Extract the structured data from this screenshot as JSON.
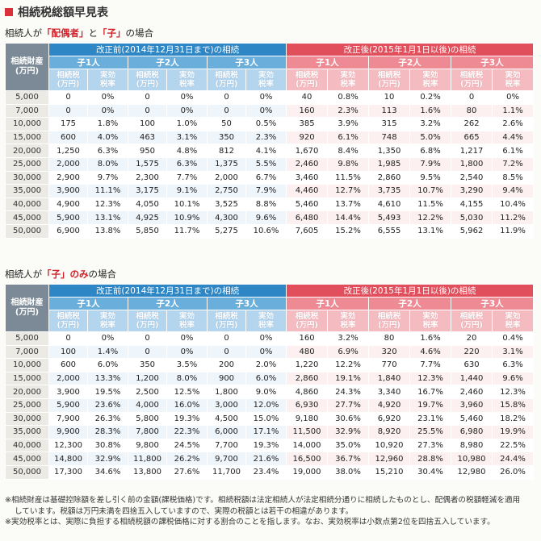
{
  "title": "相続税総額早見表",
  "headers": {
    "estate": "相続財産",
    "estate_unit": "(万円)",
    "before": "改正前(2014年12月31日まで)の相続",
    "after": "改正後(2015年1月1日以後)の相続",
    "children": [
      "子1人",
      "子2人",
      "子3人"
    ],
    "tax": "相続税",
    "tax_unit": "(万円)",
    "rate1": "実効",
    "rate2": "税率"
  },
  "table1": {
    "heading_pre": "相続人が",
    "heading_hl1": "「配偶者」",
    "heading_mid": "と",
    "heading_hl2": "「子」",
    "heading_post": "の場合",
    "rows": [
      [
        "5,000",
        "0",
        "0%",
        "0",
        "0%",
        "0",
        "0%",
        "40",
        "0.8%",
        "10",
        "0.2%",
        "0",
        "0%"
      ],
      [
        "7,000",
        "0",
        "0%",
        "0",
        "0%",
        "0",
        "0%",
        "160",
        "2.3%",
        "113",
        "1.6%",
        "80",
        "1.1%"
      ],
      [
        "10,000",
        "175",
        "1.8%",
        "100",
        "1.0%",
        "50",
        "0.5%",
        "385",
        "3.9%",
        "315",
        "3.2%",
        "262",
        "2.6%"
      ],
      [
        "15,000",
        "600",
        "4.0%",
        "463",
        "3.1%",
        "350",
        "2.3%",
        "920",
        "6.1%",
        "748",
        "5.0%",
        "665",
        "4.4%"
      ],
      [
        "20,000",
        "1,250",
        "6.3%",
        "950",
        "4.8%",
        "812",
        "4.1%",
        "1,670",
        "8.4%",
        "1,350",
        "6.8%",
        "1,217",
        "6.1%"
      ],
      [
        "25,000",
        "2,000",
        "8.0%",
        "1,575",
        "6.3%",
        "1,375",
        "5.5%",
        "2,460",
        "9.8%",
        "1,985",
        "7.9%",
        "1,800",
        "7.2%"
      ],
      [
        "30,000",
        "2,900",
        "9.7%",
        "2,300",
        "7.7%",
        "2,000",
        "6.7%",
        "3,460",
        "11.5%",
        "2,860",
        "9.5%",
        "2,540",
        "8.5%"
      ],
      [
        "35,000",
        "3,900",
        "11.1%",
        "3,175",
        "9.1%",
        "2,750",
        "7.9%",
        "4,460",
        "12.7%",
        "3,735",
        "10.7%",
        "3,290",
        "9.4%"
      ],
      [
        "40,000",
        "4,900",
        "12.3%",
        "4,050",
        "10.1%",
        "3,525",
        "8.8%",
        "5,460",
        "13.7%",
        "4,610",
        "11.5%",
        "4,155",
        "10.4%"
      ],
      [
        "45,000",
        "5,900",
        "13.1%",
        "4,925",
        "10.9%",
        "4,300",
        "9.6%",
        "6,480",
        "14.4%",
        "5,493",
        "12.2%",
        "5,030",
        "11.2%"
      ],
      [
        "50,000",
        "6,900",
        "13.8%",
        "5,850",
        "11.7%",
        "5,275",
        "10.6%",
        "7,605",
        "15.2%",
        "6,555",
        "13.1%",
        "5,962",
        "11.9%"
      ]
    ]
  },
  "table2": {
    "heading_pre": "相続人が",
    "heading_hl1": "「子」のみ",
    "heading_mid": "",
    "heading_hl2": "",
    "heading_post": "の場合",
    "rows": [
      [
        "5,000",
        "0",
        "0%",
        "0",
        "0%",
        "0",
        "0%",
        "160",
        "3.2%",
        "80",
        "1.6%",
        "20",
        "0.4%"
      ],
      [
        "7,000",
        "100",
        "1.4%",
        "0",
        "0%",
        "0",
        "0%",
        "480",
        "6.9%",
        "320",
        "4.6%",
        "220",
        "3.1%"
      ],
      [
        "10,000",
        "600",
        "6.0%",
        "350",
        "3.5%",
        "200",
        "2.0%",
        "1,220",
        "12.2%",
        "770",
        "7.7%",
        "630",
        "6.3%"
      ],
      [
        "15,000",
        "2,000",
        "13.3%",
        "1,200",
        "8.0%",
        "900",
        "6.0%",
        "2,860",
        "19.1%",
        "1,840",
        "12.3%",
        "1,440",
        "9.6%"
      ],
      [
        "20,000",
        "3,900",
        "19.5%",
        "2,500",
        "12.5%",
        "1,800",
        "9.0%",
        "4,860",
        "24.3%",
        "3,340",
        "16.7%",
        "2,460",
        "12.3%"
      ],
      [
        "25,000",
        "5,900",
        "23.6%",
        "4,000",
        "16.0%",
        "3,000",
        "12.0%",
        "6,930",
        "27.7%",
        "4,920",
        "19.7%",
        "3,960",
        "15.8%"
      ],
      [
        "30,000",
        "7,900",
        "26.3%",
        "5,800",
        "19.3%",
        "4,500",
        "15.0%",
        "9,180",
        "30.6%",
        "6,920",
        "23.1%",
        "5,460",
        "18.2%"
      ],
      [
        "35,000",
        "9,900",
        "28.3%",
        "7,800",
        "22.3%",
        "6,000",
        "17.1%",
        "11,500",
        "32.9%",
        "8,920",
        "25.5%",
        "6,980",
        "19.9%"
      ],
      [
        "40,000",
        "12,300",
        "30.8%",
        "9,800",
        "24.5%",
        "7,700",
        "19.3%",
        "14,000",
        "35.0%",
        "10,920",
        "27.3%",
        "8,980",
        "22.5%"
      ],
      [
        "45,000",
        "14,800",
        "32.9%",
        "11,800",
        "26.2%",
        "9,700",
        "21.6%",
        "16,500",
        "36.7%",
        "12,960",
        "28.8%",
        "10,980",
        "24.4%"
      ],
      [
        "50,000",
        "17,300",
        "34.6%",
        "13,800",
        "27.6%",
        "11,700",
        "23.4%",
        "19,000",
        "38.0%",
        "15,210",
        "30.4%",
        "12,980",
        "26.0%"
      ]
    ]
  },
  "notes": [
    "※相続財産は基礎控除額を差し引く前の金額(課税価格)です。相続税額は法定相続人が法定相続分通りに相続したものとし、配偶者の税額軽減を適用",
    "しています。税額は万円未満を四捨五入していますので、実際の税額とは若干の相違があります。",
    "※実効税率とは、実際に負担する相続税額の課税価格に対する割合のことを指します。なお、実効税率は小数点第2位を四捨五入しています。"
  ]
}
